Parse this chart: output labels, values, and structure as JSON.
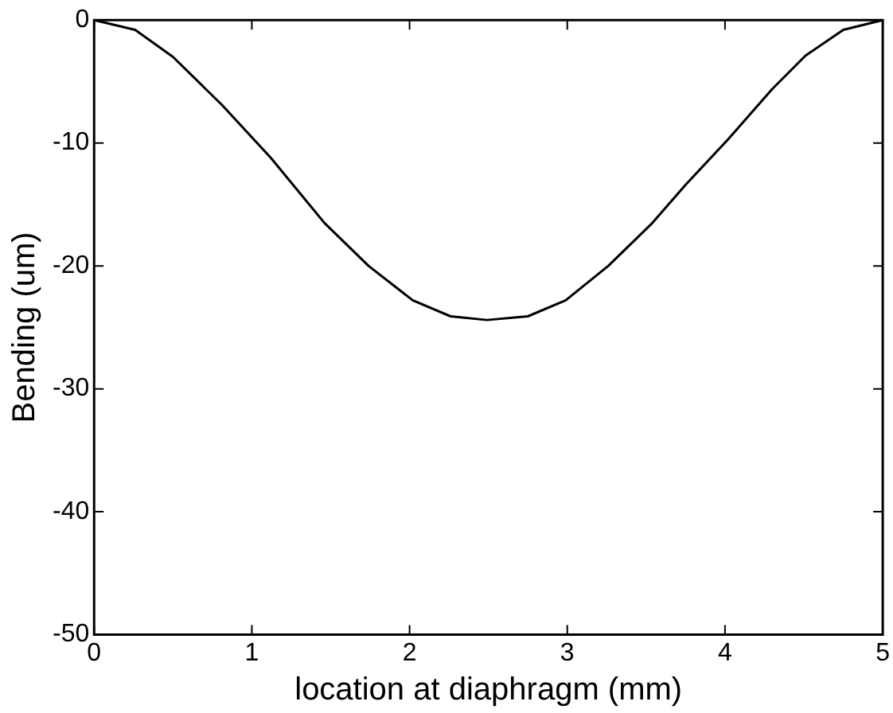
{
  "chart_data": {
    "type": "line",
    "xlabel": "location at diaphragm (mm)",
    "ylabel": "Bending (um)",
    "x": [
      0,
      0.26,
      0.5,
      0.81,
      1.12,
      1.46,
      1.74,
      2.02,
      2.26,
      2.49,
      2.75,
      2.99,
      3.26,
      3.54,
      3.75,
      4.02,
      4.3,
      4.51,
      4.75,
      5
    ],
    "series": [
      {
        "color": "#000000",
        "values": [
          0,
          -0.8,
          -3,
          -6.9,
          -11.2,
          -16.5,
          -20,
          -22.8,
          -24.1,
          -24.4,
          -24.1,
          -22.8,
          -20,
          -16.5,
          -13.4,
          -9.7,
          -5.6,
          -2.9,
          -0.8,
          0
        ]
      }
    ],
    "xlim": [
      0,
      5
    ],
    "xticks": [
      0,
      1,
      2,
      3,
      4,
      5
    ],
    "ylim": [
      -50,
      0
    ],
    "yticks": [
      -50,
      -40,
      -30,
      -20,
      -10,
      0
    ],
    "grid": false,
    "legend": false,
    "marker": "none",
    "line_style": "solid"
  }
}
